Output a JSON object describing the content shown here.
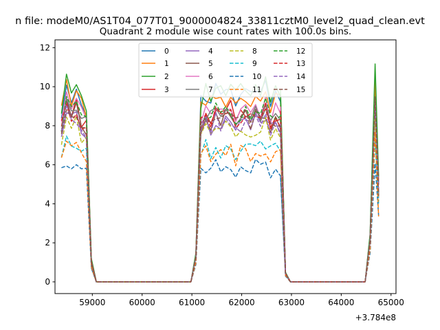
{
  "chart_data": {
    "type": "line",
    "suptitle": "n file: modeM0/AS1T04_077T01_9000004824_33811cztM0_level2_quad_clean.evt",
    "title": "Quadrant 2 module wise count rates with 100.0s bins.",
    "xlabel": "",
    "ylabel": "",
    "x_offset_label": "+3.784e8",
    "xlim": [
      58250,
      65100
    ],
    "ylim": [
      -0.6,
      12.4
    ],
    "xticks": [
      59000,
      60000,
      61000,
      62000,
      63000,
      64000,
      65000
    ],
    "yticks": [
      0,
      2,
      4,
      6,
      8,
      10,
      12
    ],
    "grid": false,
    "legend_position": "upper-center",
    "legend_columns": 4,
    "segments": [
      {
        "x": [
          58380,
          58480,
          58580,
          58680,
          58780,
          58880,
          58980,
          59080
        ],
        "profile": [
          0.92,
          1.08,
          1.0,
          1.05,
          0.97,
          0.93,
          0.12,
          0.0
        ]
      },
      {
        "x": [
          58980,
          59080,
          59180,
          59280,
          59380,
          59480,
          59580,
          59680,
          59780,
          59880,
          59980,
          60080,
          60180,
          60280,
          60380,
          60480,
          60580,
          60680,
          60780,
          60880,
          60980
        ],
        "profile": [
          0.12,
          0,
          0,
          0,
          0,
          0,
          0,
          0,
          0,
          0,
          0,
          0,
          0,
          0,
          0,
          0,
          0,
          0,
          0,
          0,
          0
        ]
      },
      {
        "x": [
          60980,
          61080,
          61180,
          61280,
          61380,
          61480,
          61580,
          61680,
          61780,
          61880,
          61980,
          62080,
          62180,
          62280,
          62380,
          62480,
          62580,
          62680,
          62780,
          62880
        ],
        "profile": [
          0.0,
          0.15,
          0.95,
          1.0,
          0.97,
          1.02,
          0.98,
          1.0,
          1.03,
          0.96,
          1.0,
          1.02,
          0.97,
          1.0,
          0.99,
          1.04,
          0.96,
          1.0,
          0.98,
          0.05
        ]
      },
      {
        "x": [
          62780,
          62880,
          62980,
          63080,
          63180,
          63280,
          63380,
          63480,
          63580,
          63680,
          63780,
          63880,
          63980,
          64080,
          64180,
          64280,
          64380,
          64480
        ],
        "profile": [
          0.98,
          0.05,
          0.0,
          0,
          0,
          0,
          0,
          0,
          0,
          0,
          0,
          0,
          0,
          0,
          0,
          0,
          0,
          0
        ]
      },
      {
        "x": [
          64480,
          64580,
          64680,
          64750
        ],
        "profile": [
          0.0,
          0.25,
          1.1,
          0.55
        ]
      }
    ],
    "series": [
      {
        "name": "0",
        "color": "#1f77b4",
        "dash": "solid",
        "level": 9.6
      },
      {
        "name": "1",
        "color": "#ff7f0e",
        "dash": "solid",
        "level": 9.4
      },
      {
        "name": "2",
        "color": "#2ca02c",
        "dash": "solid",
        "level": 9.8
      },
      {
        "name": "3",
        "color": "#d62728",
        "dash": "solid",
        "level": 8.6
      },
      {
        "name": "4",
        "color": "#9467bd",
        "dash": "solid",
        "level": 8.2
      },
      {
        "name": "5",
        "color": "#8c564b",
        "dash": "solid",
        "level": 8.4
      },
      {
        "name": "6",
        "color": "#e377c2",
        "dash": "solid",
        "level": 8.8
      },
      {
        "name": "7",
        "color": "#7f7f7f",
        "dash": "solid",
        "level": 8.7
      },
      {
        "name": "8",
        "color": "#bcbd22",
        "dash": "dashed",
        "level": 7.8
      },
      {
        "name": "9",
        "color": "#17becf",
        "dash": "dashed",
        "level": 6.9
      },
      {
        "name": "10",
        "color": "#1f77b4",
        "dash": "dashed",
        "level": 5.9
      },
      {
        "name": "11",
        "color": "#ff7f0e",
        "dash": "dashed",
        "level": 6.6
      },
      {
        "name": "12",
        "color": "#2ca02c",
        "dash": "dashed",
        "level": 8.7
      },
      {
        "name": "13",
        "color": "#d62728",
        "dash": "dashed",
        "level": 8.5
      },
      {
        "name": "14",
        "color": "#9467bd",
        "dash": "dashed",
        "level": 8.1
      },
      {
        "name": "15",
        "color": "#8c564b",
        "dash": "dashed",
        "level": 8.3
      }
    ]
  }
}
